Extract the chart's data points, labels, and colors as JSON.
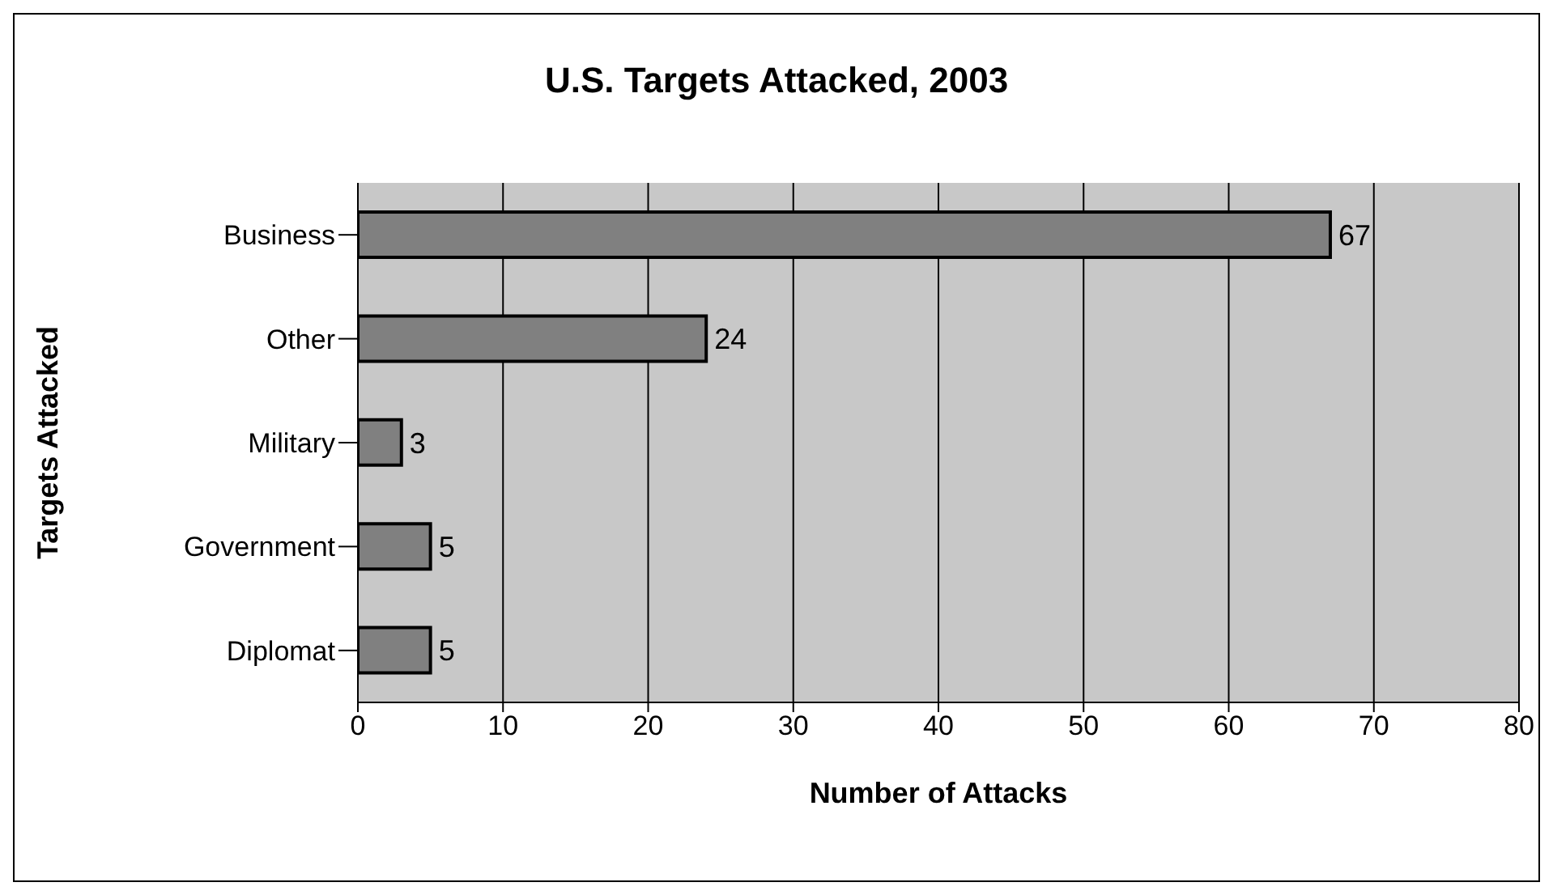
{
  "chart_data": {
    "type": "bar",
    "orientation": "horizontal",
    "title": "U.S. Targets Attacked, 2003",
    "xlabel": "Number of Attacks",
    "ylabel": "Targets Attacked",
    "categories": [
      "Business",
      "Other",
      "Military",
      "Government",
      "Diplomat"
    ],
    "values": [
      67,
      24,
      3,
      5,
      5
    ],
    "color": "#808080",
    "data_labels": true,
    "xlim": [
      0,
      80
    ],
    "xticks": [
      0,
      10,
      20,
      30,
      40,
      50,
      60,
      70,
      80
    ],
    "grid": "x"
  }
}
